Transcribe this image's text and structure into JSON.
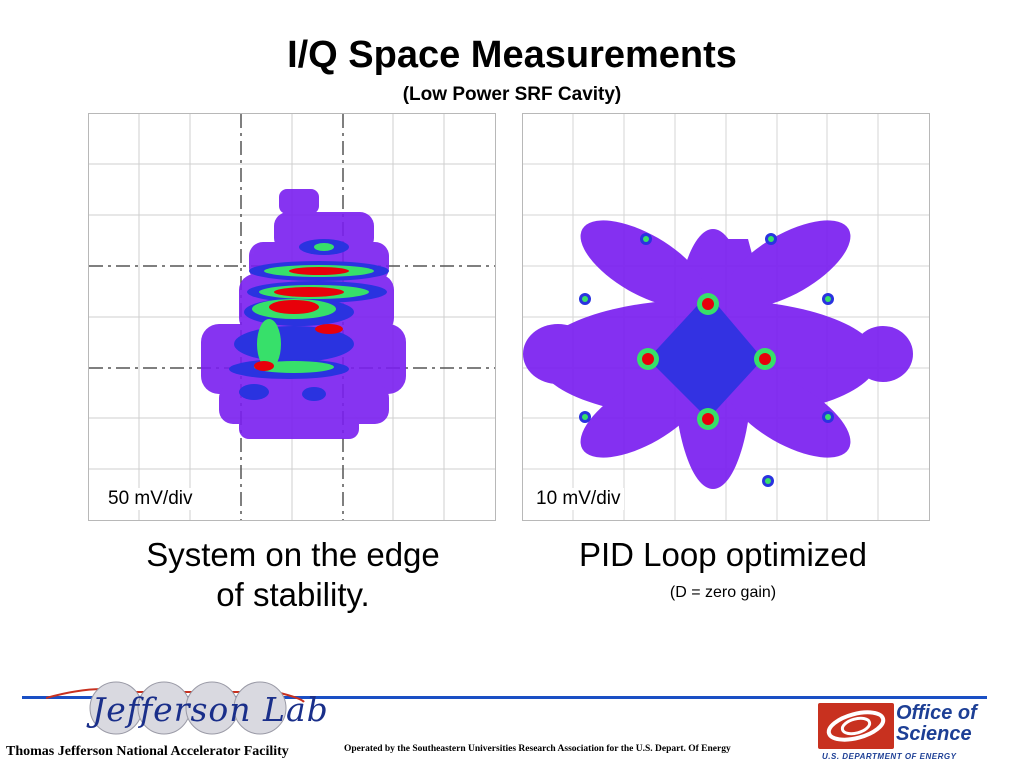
{
  "slide": {
    "title": "I/Q Space Measurements",
    "subtitle": "(Low Power SRF Cavity)"
  },
  "left_panel": {
    "scale_label": "50 mV/div",
    "caption_line1": "System on the edge",
    "caption_line2": "of stability."
  },
  "right_panel": {
    "scale_label": "10 mV/div",
    "caption": "PID Loop optimized",
    "note": "(D = zero gain)"
  },
  "footer": {
    "logo_text": "Jefferson Lab",
    "facility": "Thomas Jefferson National Accelerator Facility",
    "operated_by": "Operated by the Southeastern Universities Research Association for the U.S. Depart. Of Energy",
    "doe_title_line1": "Office of",
    "doe_title_line2": "Science",
    "doe_subtitle": "U.S. DEPARTMENT OF ENERGY"
  },
  "colors": {
    "accent_blue": "#1a4fc4",
    "doe_red": "#c8311f",
    "doe_blue": "#1d3f95",
    "scatter_purple": "#7a1ff0",
    "scatter_blue": "#2a33e0",
    "hot_red": "#e8000a",
    "hot_green": "#37e06a"
  }
}
